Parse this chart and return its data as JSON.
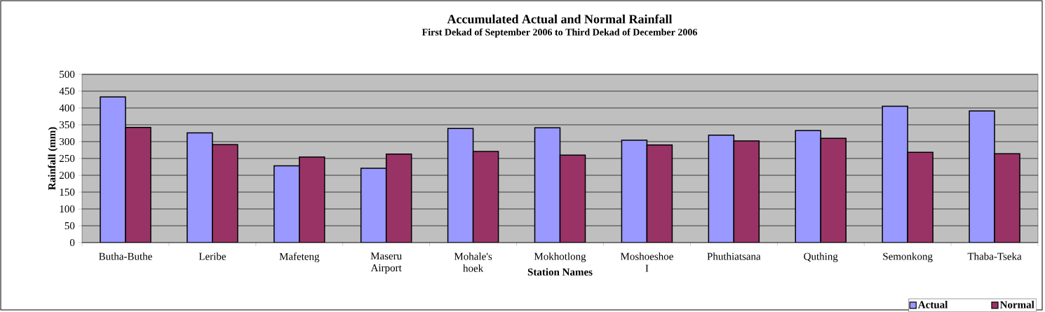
{
  "chart_data": {
    "type": "bar",
    "title": "Accumulated Actual and Normal Rainfall",
    "subtitle": "First Dekad of September 2006 to Third Dekad of December 2006",
    "xlabel": "Station Names",
    "ylabel": "Rainfall (mm)",
    "categories": [
      "Butha-Buthe",
      "Leribe",
      "Mafeteng",
      "Maseru Airport",
      "Mohale's hoek",
      "Mokhotlong",
      "Moshoeshoe I",
      "Phuthiatsana",
      "Quthing",
      "Semonkong",
      "Thaba-Tseka"
    ],
    "series": [
      {
        "name": "Actual",
        "color": "#9999ff",
        "values": [
          433,
          326,
          228,
          221,
          339,
          341,
          304,
          319,
          333,
          405,
          391
        ]
      },
      {
        "name": "Normal",
        "color": "#993366",
        "values": [
          342,
          291,
          254,
          263,
          271,
          260,
          290,
          302,
          310,
          268,
          264
        ]
      }
    ],
    "ylim": [
      0,
      500
    ],
    "yticks": [
      0,
      50,
      100,
      150,
      200,
      250,
      300,
      350,
      400,
      450,
      500
    ],
    "grid": "y",
    "legend": "bottom right"
  }
}
